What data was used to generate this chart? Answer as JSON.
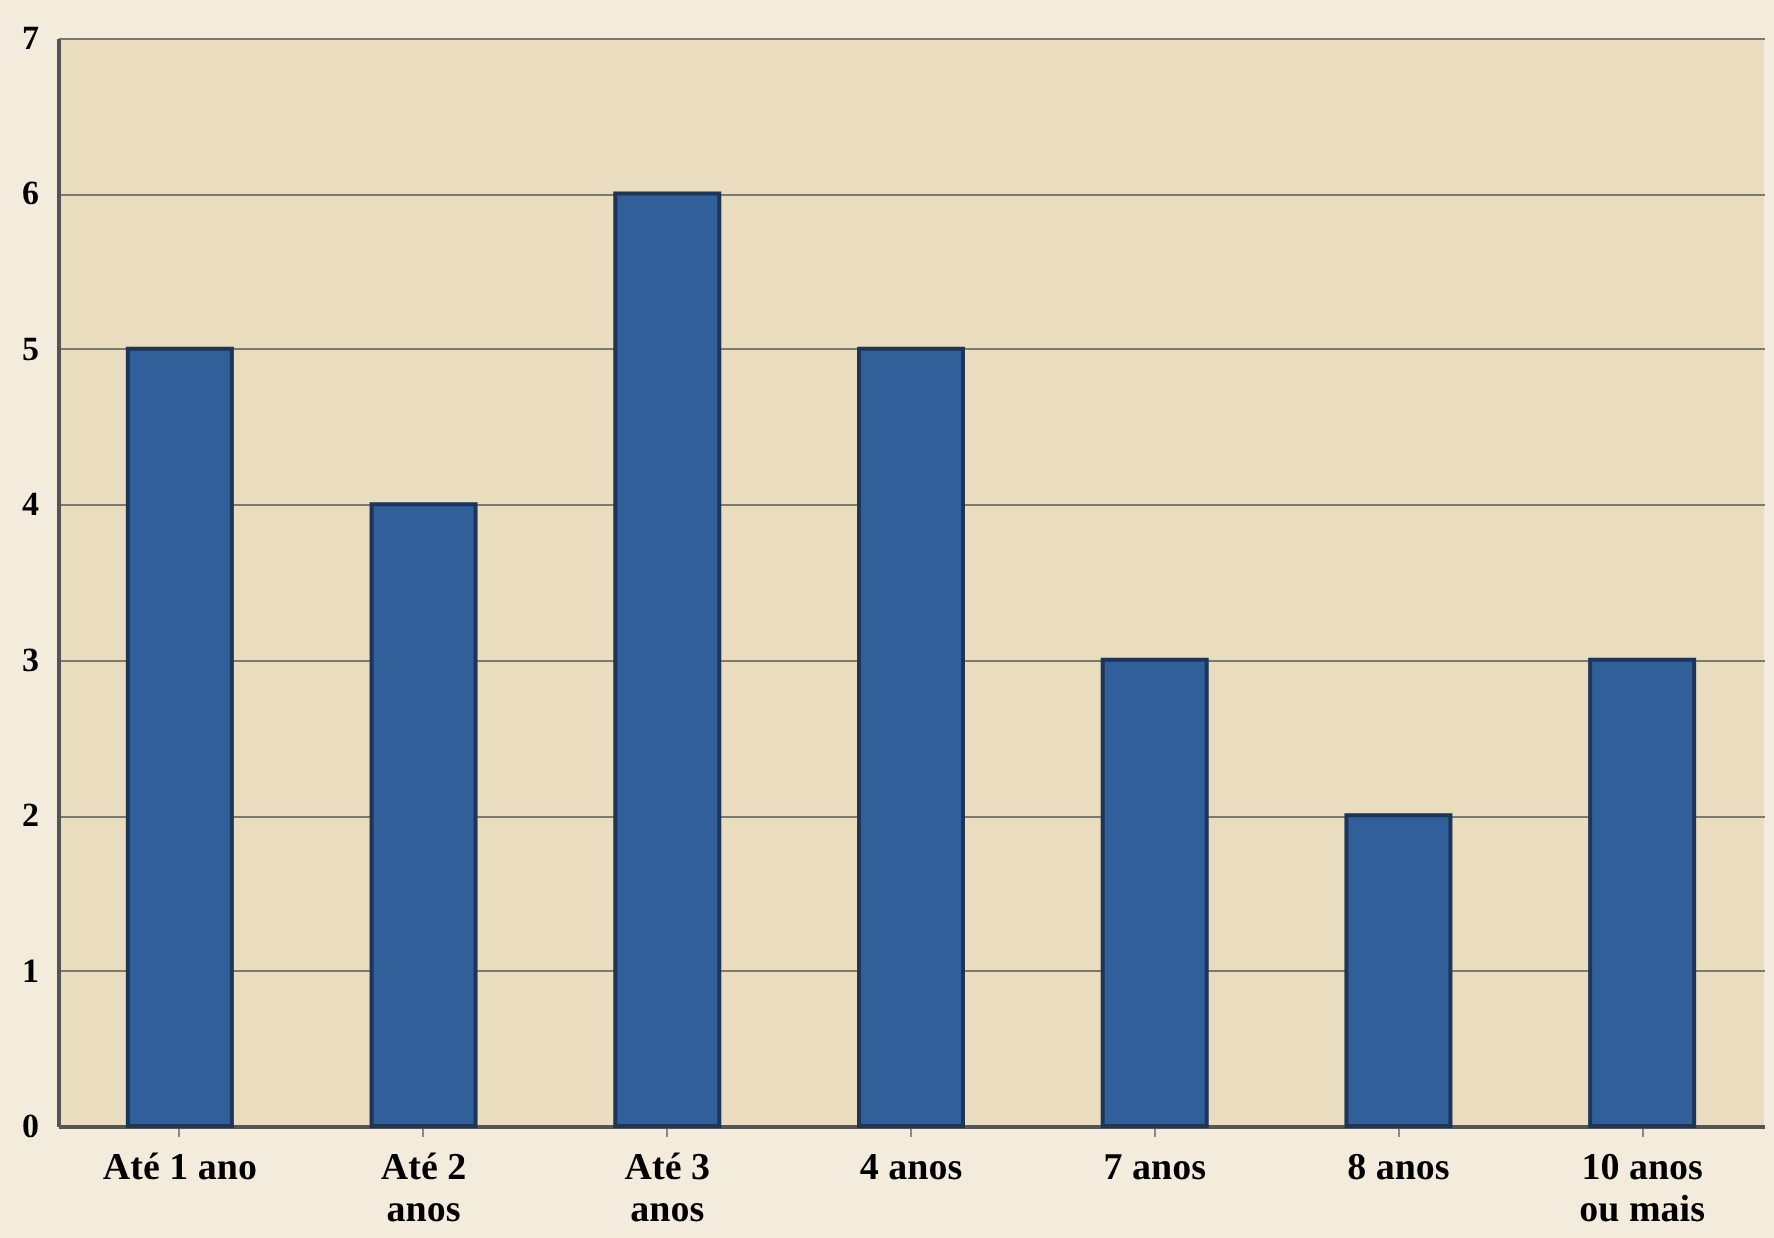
{
  "chart_data": {
    "type": "bar",
    "categories": [
      "Até 1 ano",
      "Até 2 anos",
      "Até 3 anos",
      "4 anos",
      "7 anos",
      "8 anos",
      "10 anos ou mais"
    ],
    "values": [
      5,
      4,
      6,
      5,
      3,
      2,
      3
    ],
    "color": "#305f9a",
    "ylim": [
      0,
      7
    ],
    "yticks": [
      0,
      1,
      2,
      3,
      4,
      5,
      6,
      7
    ],
    "grid": "y"
  }
}
